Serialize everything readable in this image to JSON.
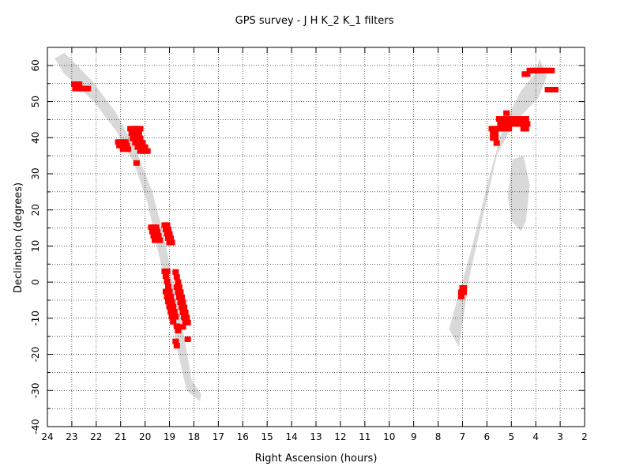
{
  "chart_data": {
    "type": "scatter",
    "title": "GPS survey - J H K_2 K_1  filters",
    "xlabel": "Right Ascension (hours)",
    "ylabel": "Declination (degrees)",
    "xlim": [
      24,
      2
    ],
    "ylim": [
      -40,
      65
    ],
    "grid": true,
    "x_ticks": [
      "24",
      "23",
      "22",
      "21",
      "20",
      "19",
      "18",
      "17",
      "16",
      "15",
      "14",
      "13",
      "12",
      "11",
      "10",
      "9",
      "8",
      "7",
      "6",
      "5",
      "4",
      "3",
      "2"
    ],
    "y_ticks": [
      "60",
      "50",
      "40",
      "30",
      "20",
      "10",
      "0",
      "-10",
      "-20",
      "-30",
      "-40"
    ],
    "colors": {
      "points": "#ff0000",
      "band": "#d9d9d9",
      "grid": "#000000"
    },
    "band": [
      [
        23.3,
        63.5
      ],
      [
        22.2,
        56.0
      ],
      [
        21.2,
        47.0
      ],
      [
        20.4,
        37.0
      ],
      [
        19.7,
        25.0
      ],
      [
        19.2,
        12.0
      ],
      [
        18.8,
        -2.0
      ],
      [
        18.4,
        -15.0
      ],
      [
        18.1,
        -27.0
      ],
      [
        17.7,
        -31.0
      ],
      [
        17.75,
        -33.0
      ],
      [
        18.3,
        -30.0
      ],
      [
        18.7,
        -18.0
      ],
      [
        19.0,
        -5.0
      ],
      [
        19.45,
        8.0
      ],
      [
        19.9,
        22.0
      ],
      [
        20.45,
        33.0
      ],
      [
        21.2,
        42.0
      ],
      [
        22.1,
        50.0
      ],
      [
        23.35,
        58.0
      ],
      [
        23.7,
        62.0
      ],
      null,
      [
        7.55,
        -13.0
      ],
      [
        6.6,
        10.0
      ],
      [
        5.95,
        28.0
      ],
      [
        5.3,
        44.0
      ],
      [
        4.6,
        53.0
      ],
      [
        4.0,
        58.0
      ],
      [
        3.85,
        62.0
      ],
      [
        3.55,
        57.0
      ],
      [
        3.9,
        51.0
      ],
      [
        4.9,
        44.0
      ],
      [
        5.6,
        35.0
      ],
      [
        6.1,
        20.0
      ],
      [
        6.7,
        2.0
      ],
      [
        7.15,
        -18.0
      ],
      null,
      [
        4.95,
        34.0
      ],
      [
        4.5,
        35.0
      ],
      [
        4.25,
        27.0
      ],
      [
        4.4,
        17.0
      ],
      [
        4.6,
        14.0
      ],
      [
        5.0,
        17.0
      ],
      [
        5.15,
        24.0
      ]
    ],
    "series": [
      {
        "points": [
          [
            22.9,
            54.8
          ],
          [
            22.8,
            54.8
          ],
          [
            22.7,
            54.8
          ],
          [
            22.85,
            53.6
          ],
          [
            22.75,
            53.6
          ],
          [
            22.65,
            53.6
          ],
          [
            22.55,
            53.6
          ],
          [
            22.45,
            53.6
          ],
          [
            22.35,
            53.6
          ],
          [
            21.1,
            38.8
          ],
          [
            21.0,
            38.8
          ],
          [
            20.9,
            38.8
          ],
          [
            20.8,
            38.8
          ],
          [
            21.05,
            37.8
          ],
          [
            20.95,
            37.8
          ],
          [
            20.85,
            37.8
          ],
          [
            20.75,
            37.8
          ],
          [
            20.9,
            36.8
          ],
          [
            20.8,
            36.8
          ],
          [
            20.7,
            36.8
          ],
          [
            20.6,
            42.5
          ],
          [
            20.5,
            42.5
          ],
          [
            20.4,
            42.5
          ],
          [
            20.3,
            42.5
          ],
          [
            20.2,
            42.5
          ],
          [
            20.55,
            41.2
          ],
          [
            20.45,
            41.2
          ],
          [
            20.35,
            41.2
          ],
          [
            20.25,
            41.2
          ],
          [
            20.5,
            39.8
          ],
          [
            20.4,
            39.8
          ],
          [
            20.3,
            39.8
          ],
          [
            20.2,
            39.8
          ],
          [
            20.4,
            38.6
          ],
          [
            20.3,
            38.6
          ],
          [
            20.2,
            38.6
          ],
          [
            20.1,
            38.6
          ],
          [
            20.3,
            37.4
          ],
          [
            20.2,
            37.4
          ],
          [
            20.1,
            37.4
          ],
          [
            20.0,
            37.4
          ],
          [
            20.2,
            36.3
          ],
          [
            20.1,
            36.3
          ],
          [
            20.0,
            36.3
          ],
          [
            19.9,
            36.3
          ],
          [
            20.35,
            33.0
          ],
          [
            19.75,
            15.2
          ],
          [
            19.65,
            15.2
          ],
          [
            19.55,
            15.2
          ],
          [
            19.7,
            14.0
          ],
          [
            19.6,
            14.0
          ],
          [
            19.5,
            14.0
          ],
          [
            19.65,
            12.8
          ],
          [
            19.55,
            12.8
          ],
          [
            19.45,
            12.8
          ],
          [
            19.6,
            11.6
          ],
          [
            19.5,
            11.6
          ],
          [
            19.4,
            11.6
          ],
          [
            19.2,
            15.8
          ],
          [
            19.1,
            15.8
          ],
          [
            19.15,
            14.6
          ],
          [
            19.05,
            14.6
          ],
          [
            19.1,
            13.4
          ],
          [
            19.0,
            13.4
          ],
          [
            19.05,
            12.2
          ],
          [
            18.95,
            12.2
          ],
          [
            19.0,
            11.0
          ],
          [
            18.9,
            11.0
          ],
          [
            19.2,
            3.0
          ],
          [
            19.1,
            3.0
          ],
          [
            19.15,
            1.6
          ],
          [
            19.1,
            0.2
          ],
          [
            19.05,
            -1.2
          ],
          [
            19.15,
            -2.6
          ],
          [
            19.0,
            -2.6
          ],
          [
            19.1,
            -4.0
          ],
          [
            18.95,
            -4.0
          ],
          [
            19.05,
            -5.4
          ],
          [
            18.9,
            -5.4
          ],
          [
            19.0,
            -6.8
          ],
          [
            18.85,
            -6.8
          ],
          [
            18.95,
            -8.2
          ],
          [
            18.8,
            -8.2
          ],
          [
            18.9,
            -9.6
          ],
          [
            18.75,
            -9.6
          ],
          [
            18.85,
            -11.0
          ],
          [
            18.7,
            -12.2
          ],
          [
            18.65,
            -13.4
          ],
          [
            18.75,
            -16.4
          ],
          [
            18.7,
            -17.6
          ],
          [
            18.75,
            2.8
          ],
          [
            18.7,
            1.4
          ],
          [
            18.65,
            0.0
          ],
          [
            18.6,
            -1.4
          ],
          [
            18.7,
            -1.4
          ],
          [
            18.55,
            -2.8
          ],
          [
            18.65,
            -2.8
          ],
          [
            18.5,
            -4.2
          ],
          [
            18.6,
            -4.2
          ],
          [
            18.45,
            -5.6
          ],
          [
            18.55,
            -5.6
          ],
          [
            18.4,
            -7.0
          ],
          [
            18.5,
            -7.0
          ],
          [
            18.35,
            -8.4
          ],
          [
            18.45,
            -8.4
          ],
          [
            18.3,
            -9.8
          ],
          [
            18.4,
            -9.8
          ],
          [
            18.25,
            -11.2
          ],
          [
            18.35,
            -11.2
          ],
          [
            18.45,
            -12.4
          ],
          [
            18.25,
            -15.8
          ],
          [
            7.0,
            -1.6
          ],
          [
            6.95,
            -1.6
          ],
          [
            7.05,
            -2.8
          ],
          [
            6.95,
            -2.8
          ],
          [
            7.05,
            -4.0
          ],
          [
            5.8,
            42.5
          ],
          [
            5.7,
            42.5
          ],
          [
            5.6,
            42.5
          ],
          [
            5.5,
            42.5
          ],
          [
            5.75,
            41.2
          ],
          [
            5.65,
            41.2
          ],
          [
            5.75,
            39.9
          ],
          [
            5.65,
            39.9
          ],
          [
            5.6,
            38.5
          ],
          [
            5.45,
            43.8
          ],
          [
            5.35,
            43.8
          ],
          [
            5.25,
            43.8
          ],
          [
            5.15,
            43.8
          ],
          [
            5.05,
            43.8
          ],
          [
            4.95,
            43.8
          ],
          [
            4.85,
            43.8
          ],
          [
            4.75,
            43.8
          ],
          [
            4.65,
            43.8
          ],
          [
            4.55,
            43.8
          ],
          [
            4.45,
            43.8
          ],
          [
            4.35,
            43.8
          ],
          [
            5.5,
            45.2
          ],
          [
            5.4,
            45.2
          ],
          [
            5.3,
            45.2
          ],
          [
            5.2,
            45.2
          ],
          [
            5.1,
            45.2
          ],
          [
            5.0,
            45.2
          ],
          [
            4.9,
            45.2
          ],
          [
            4.8,
            45.2
          ],
          [
            4.7,
            45.2
          ],
          [
            4.6,
            45.2
          ],
          [
            4.5,
            45.2
          ],
          [
            4.4,
            45.2
          ],
          [
            5.3,
            42.5
          ],
          [
            5.2,
            42.5
          ],
          [
            5.1,
            42.5
          ],
          [
            4.5,
            42.5
          ],
          [
            4.4,
            42.5
          ],
          [
            5.2,
            46.8
          ],
          [
            4.45,
            57.6
          ],
          [
            4.35,
            57.6
          ],
          [
            4.25,
            58.6
          ],
          [
            4.15,
            58.6
          ],
          [
            4.05,
            58.6
          ],
          [
            3.95,
            58.6
          ],
          [
            3.85,
            58.6
          ],
          [
            3.75,
            58.6
          ],
          [
            3.65,
            58.6
          ],
          [
            3.55,
            58.6
          ],
          [
            3.45,
            58.6
          ],
          [
            3.35,
            58.6
          ],
          [
            3.5,
            53.3
          ],
          [
            3.4,
            53.3
          ],
          [
            3.3,
            53.3
          ],
          [
            3.2,
            53.3
          ]
        ]
      }
    ]
  }
}
